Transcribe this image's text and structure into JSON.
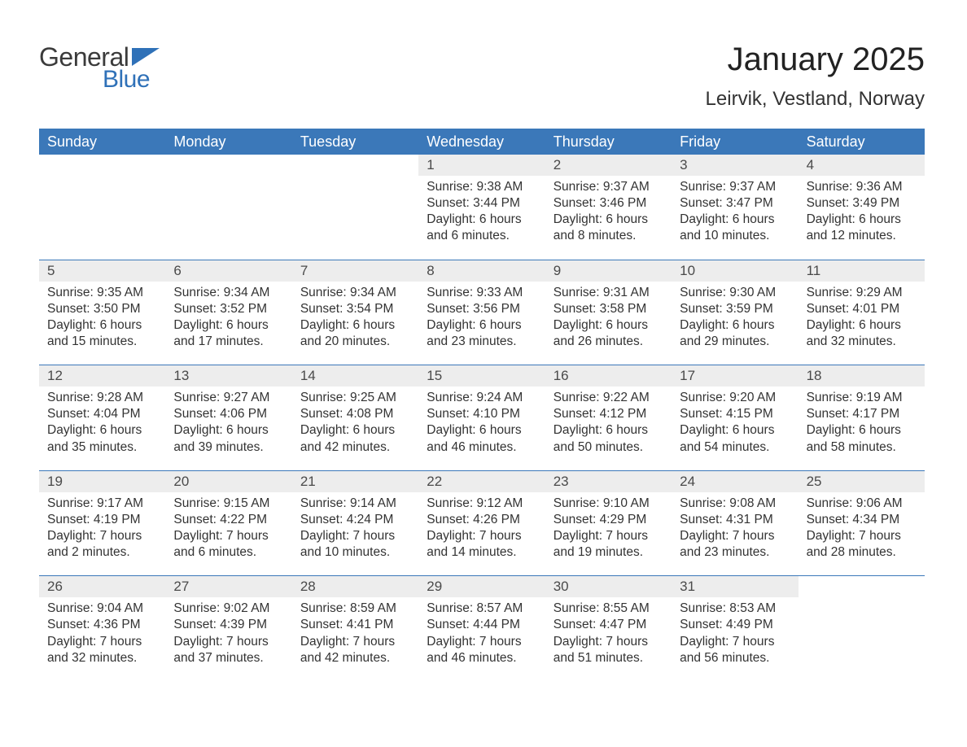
{
  "logo": {
    "general": "General",
    "blue": "Blue",
    "accent_color": "#2f71b8",
    "text_color": "#3b3b3b"
  },
  "header": {
    "title": "January 2025",
    "location": "Leirvik, Vestland, Norway",
    "title_fontsize": 40,
    "location_fontsize": 24,
    "text_color": "#222222"
  },
  "calendar": {
    "header_bg": "#3b78b9",
    "header_text_color": "#ffffff",
    "daynum_bg": "#ededed",
    "daynum_color": "#4a4a4a",
    "divider_color": "#3b78b9",
    "body_text_color": "#333333",
    "body_fontsize": 15.5,
    "columns": [
      "Sunday",
      "Monday",
      "Tuesday",
      "Wednesday",
      "Thursday",
      "Friday",
      "Saturday"
    ],
    "weeks": [
      [
        {
          "empty": true
        },
        {
          "empty": true
        },
        {
          "empty": true
        },
        {
          "day": "1",
          "sunrise": "Sunrise: 9:38 AM",
          "sunset": "Sunset: 3:44 PM",
          "daylight1": "Daylight: 6 hours",
          "daylight2": "and 6 minutes."
        },
        {
          "day": "2",
          "sunrise": "Sunrise: 9:37 AM",
          "sunset": "Sunset: 3:46 PM",
          "daylight1": "Daylight: 6 hours",
          "daylight2": "and 8 minutes."
        },
        {
          "day": "3",
          "sunrise": "Sunrise: 9:37 AM",
          "sunset": "Sunset: 3:47 PM",
          "daylight1": "Daylight: 6 hours",
          "daylight2": "and 10 minutes."
        },
        {
          "day": "4",
          "sunrise": "Sunrise: 9:36 AM",
          "sunset": "Sunset: 3:49 PM",
          "daylight1": "Daylight: 6 hours",
          "daylight2": "and 12 minutes."
        }
      ],
      [
        {
          "day": "5",
          "sunrise": "Sunrise: 9:35 AM",
          "sunset": "Sunset: 3:50 PM",
          "daylight1": "Daylight: 6 hours",
          "daylight2": "and 15 minutes."
        },
        {
          "day": "6",
          "sunrise": "Sunrise: 9:34 AM",
          "sunset": "Sunset: 3:52 PM",
          "daylight1": "Daylight: 6 hours",
          "daylight2": "and 17 minutes."
        },
        {
          "day": "7",
          "sunrise": "Sunrise: 9:34 AM",
          "sunset": "Sunset: 3:54 PM",
          "daylight1": "Daylight: 6 hours",
          "daylight2": "and 20 minutes."
        },
        {
          "day": "8",
          "sunrise": "Sunrise: 9:33 AM",
          "sunset": "Sunset: 3:56 PM",
          "daylight1": "Daylight: 6 hours",
          "daylight2": "and 23 minutes."
        },
        {
          "day": "9",
          "sunrise": "Sunrise: 9:31 AM",
          "sunset": "Sunset: 3:58 PM",
          "daylight1": "Daylight: 6 hours",
          "daylight2": "and 26 minutes."
        },
        {
          "day": "10",
          "sunrise": "Sunrise: 9:30 AM",
          "sunset": "Sunset: 3:59 PM",
          "daylight1": "Daylight: 6 hours",
          "daylight2": "and 29 minutes."
        },
        {
          "day": "11",
          "sunrise": "Sunrise: 9:29 AM",
          "sunset": "Sunset: 4:01 PM",
          "daylight1": "Daylight: 6 hours",
          "daylight2": "and 32 minutes."
        }
      ],
      [
        {
          "day": "12",
          "sunrise": "Sunrise: 9:28 AM",
          "sunset": "Sunset: 4:04 PM",
          "daylight1": "Daylight: 6 hours",
          "daylight2": "and 35 minutes."
        },
        {
          "day": "13",
          "sunrise": "Sunrise: 9:27 AM",
          "sunset": "Sunset: 4:06 PM",
          "daylight1": "Daylight: 6 hours",
          "daylight2": "and 39 minutes."
        },
        {
          "day": "14",
          "sunrise": "Sunrise: 9:25 AM",
          "sunset": "Sunset: 4:08 PM",
          "daylight1": "Daylight: 6 hours",
          "daylight2": "and 42 minutes."
        },
        {
          "day": "15",
          "sunrise": "Sunrise: 9:24 AM",
          "sunset": "Sunset: 4:10 PM",
          "daylight1": "Daylight: 6 hours",
          "daylight2": "and 46 minutes."
        },
        {
          "day": "16",
          "sunrise": "Sunrise: 9:22 AM",
          "sunset": "Sunset: 4:12 PM",
          "daylight1": "Daylight: 6 hours",
          "daylight2": "and 50 minutes."
        },
        {
          "day": "17",
          "sunrise": "Sunrise: 9:20 AM",
          "sunset": "Sunset: 4:15 PM",
          "daylight1": "Daylight: 6 hours",
          "daylight2": "and 54 minutes."
        },
        {
          "day": "18",
          "sunrise": "Sunrise: 9:19 AM",
          "sunset": "Sunset: 4:17 PM",
          "daylight1": "Daylight: 6 hours",
          "daylight2": "and 58 minutes."
        }
      ],
      [
        {
          "day": "19",
          "sunrise": "Sunrise: 9:17 AM",
          "sunset": "Sunset: 4:19 PM",
          "daylight1": "Daylight: 7 hours",
          "daylight2": "and 2 minutes."
        },
        {
          "day": "20",
          "sunrise": "Sunrise: 9:15 AM",
          "sunset": "Sunset: 4:22 PM",
          "daylight1": "Daylight: 7 hours",
          "daylight2": "and 6 minutes."
        },
        {
          "day": "21",
          "sunrise": "Sunrise: 9:14 AM",
          "sunset": "Sunset: 4:24 PM",
          "daylight1": "Daylight: 7 hours",
          "daylight2": "and 10 minutes."
        },
        {
          "day": "22",
          "sunrise": "Sunrise: 9:12 AM",
          "sunset": "Sunset: 4:26 PM",
          "daylight1": "Daylight: 7 hours",
          "daylight2": "and 14 minutes."
        },
        {
          "day": "23",
          "sunrise": "Sunrise: 9:10 AM",
          "sunset": "Sunset: 4:29 PM",
          "daylight1": "Daylight: 7 hours",
          "daylight2": "and 19 minutes."
        },
        {
          "day": "24",
          "sunrise": "Sunrise: 9:08 AM",
          "sunset": "Sunset: 4:31 PM",
          "daylight1": "Daylight: 7 hours",
          "daylight2": "and 23 minutes."
        },
        {
          "day": "25",
          "sunrise": "Sunrise: 9:06 AM",
          "sunset": "Sunset: 4:34 PM",
          "daylight1": "Daylight: 7 hours",
          "daylight2": "and 28 minutes."
        }
      ],
      [
        {
          "day": "26",
          "sunrise": "Sunrise: 9:04 AM",
          "sunset": "Sunset: 4:36 PM",
          "daylight1": "Daylight: 7 hours",
          "daylight2": "and 32 minutes."
        },
        {
          "day": "27",
          "sunrise": "Sunrise: 9:02 AM",
          "sunset": "Sunset: 4:39 PM",
          "daylight1": "Daylight: 7 hours",
          "daylight2": "and 37 minutes."
        },
        {
          "day": "28",
          "sunrise": "Sunrise: 8:59 AM",
          "sunset": "Sunset: 4:41 PM",
          "daylight1": "Daylight: 7 hours",
          "daylight2": "and 42 minutes."
        },
        {
          "day": "29",
          "sunrise": "Sunrise: 8:57 AM",
          "sunset": "Sunset: 4:44 PM",
          "daylight1": "Daylight: 7 hours",
          "daylight2": "and 46 minutes."
        },
        {
          "day": "30",
          "sunrise": "Sunrise: 8:55 AM",
          "sunset": "Sunset: 4:47 PM",
          "daylight1": "Daylight: 7 hours",
          "daylight2": "and 51 minutes."
        },
        {
          "day": "31",
          "sunrise": "Sunrise: 8:53 AM",
          "sunset": "Sunset: 4:49 PM",
          "daylight1": "Daylight: 7 hours",
          "daylight2": "and 56 minutes."
        },
        {
          "empty": true
        }
      ]
    ]
  }
}
